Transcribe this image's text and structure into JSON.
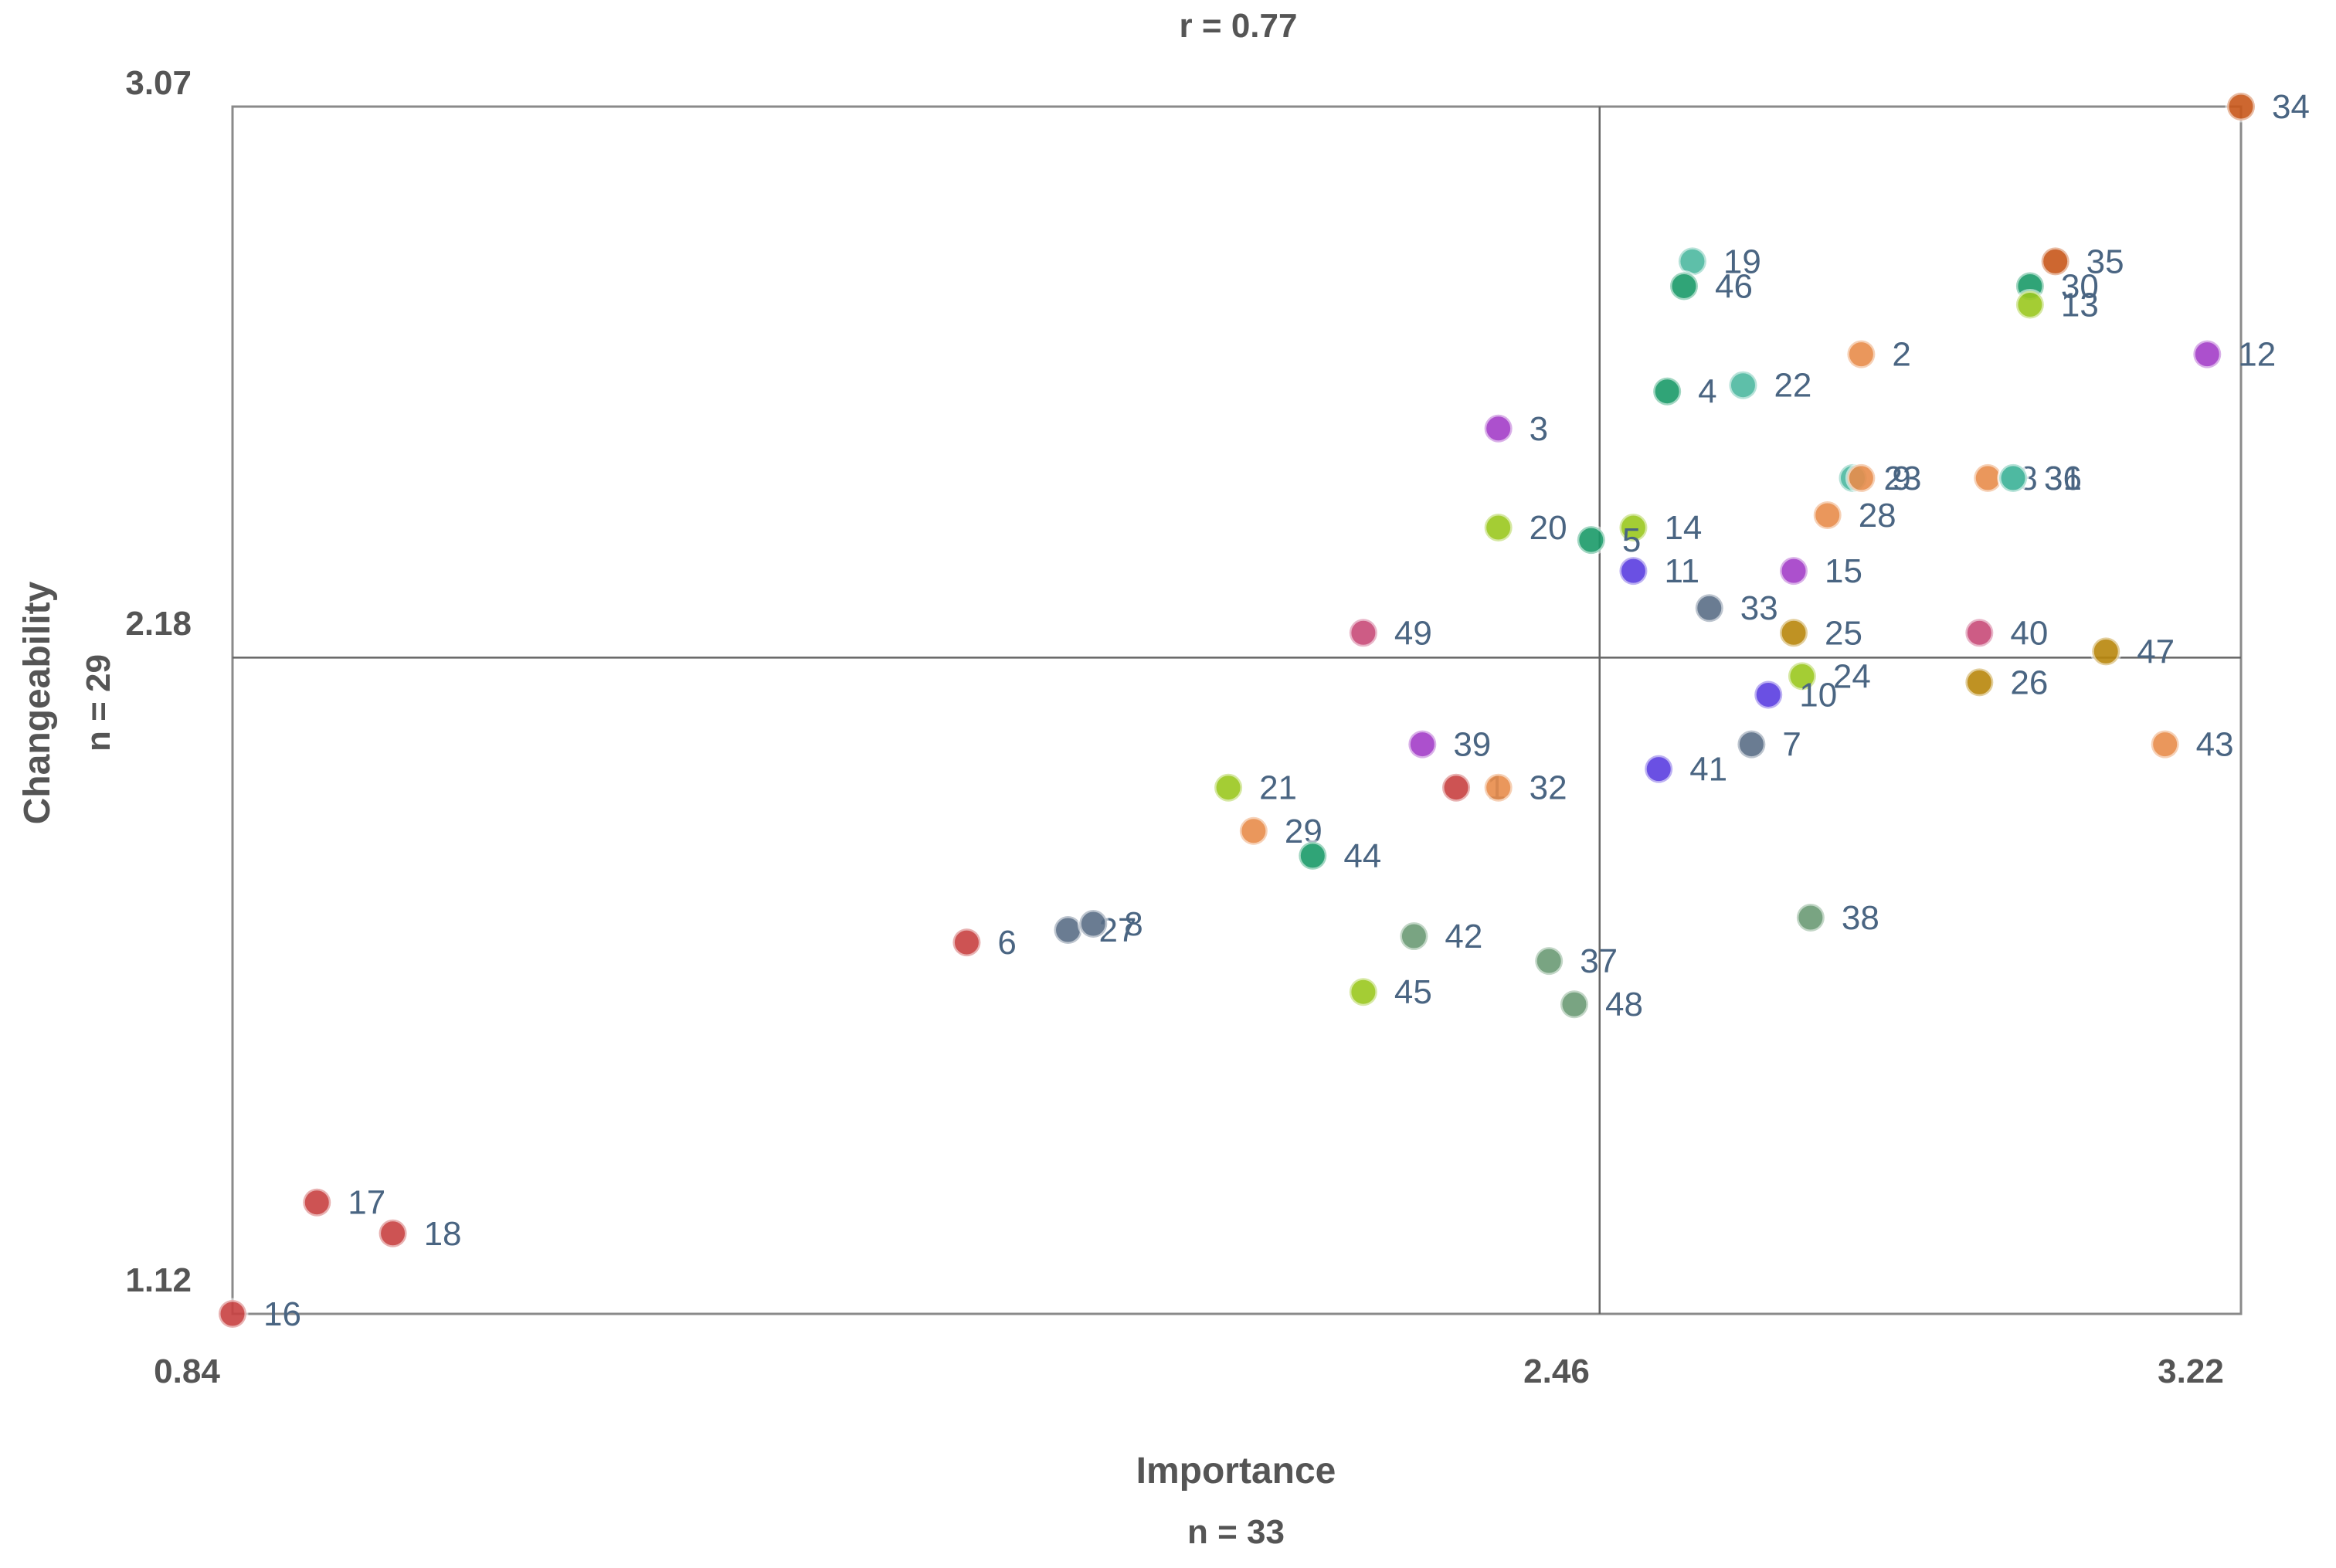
{
  "chart_data": {
    "type": "scatter",
    "title": "r = 0.77",
    "xlabel": "Importance",
    "xlabel_sub": "n = 33",
    "ylabel": "Changeability",
    "ylabel_sub": "n = 29",
    "xlim": [
      0.84,
      3.22
    ],
    "ylim": [
      1.12,
      3.07
    ],
    "xticks": [
      "0.84",
      "2.46",
      "3.22"
    ],
    "yticks": [
      "1.12",
      "2.18",
      "3.07"
    ],
    "x_divider": 2.46,
    "y_divider": 2.18,
    "points": [
      {
        "label": "34",
        "x": 3.22,
        "y": 3.07,
        "color": "#c8571a"
      },
      {
        "label": "19",
        "x": 2.57,
        "y": 2.82,
        "color": "#4db8a0"
      },
      {
        "label": "46",
        "x": 2.56,
        "y": 2.78,
        "color": "#1a9a68"
      },
      {
        "label": "35",
        "x": 3.0,
        "y": 2.82,
        "color": "#c8571a"
      },
      {
        "label": "30",
        "x": 2.97,
        "y": 2.78,
        "color": "#1a9a68"
      },
      {
        "label": "13",
        "x": 2.97,
        "y": 2.75,
        "color": "#9ac81e"
      },
      {
        "label": "2",
        "x": 2.77,
        "y": 2.67,
        "color": "#e88c4a"
      },
      {
        "label": "12",
        "x": 3.18,
        "y": 2.67,
        "color": "#a33dc8"
      },
      {
        "label": "4",
        "x": 2.54,
        "y": 2.61,
        "color": "#1a9a68"
      },
      {
        "label": "22",
        "x": 2.63,
        "y": 2.62,
        "color": "#4db8a0"
      },
      {
        "label": "3",
        "x": 2.34,
        "y": 2.55,
        "color": "#a33dc8"
      },
      {
        "label": "23",
        "x": 2.76,
        "y": 2.47,
        "color": "#4db8a0"
      },
      {
        "label": "9",
        "x": 2.77,
        "y": 2.47,
        "color": "#e88c4a"
      },
      {
        "label": "8",
        "x": 2.92,
        "y": 2.47,
        "color": "#e88c4a"
      },
      {
        "label": "31",
        "x": 2.95,
        "y": 2.47,
        "color": "#4db8a0"
      },
      {
        "label": "36",
        "x": 2.95,
        "y": 2.47,
        "color": "#4db8a0"
      },
      {
        "label": "28",
        "x": 2.73,
        "y": 2.41,
        "color": "#e88c4a"
      },
      {
        "label": "20",
        "x": 2.34,
        "y": 2.39,
        "color": "#9ac81e"
      },
      {
        "label": "14",
        "x": 2.5,
        "y": 2.39,
        "color": "#9ac81e"
      },
      {
        "label": "5",
        "x": 2.45,
        "y": 2.37,
        "color": "#1a9a68"
      },
      {
        "label": "11",
        "x": 2.5,
        "y": 2.32,
        "color": "#5a3de0"
      },
      {
        "label": "15",
        "x": 2.69,
        "y": 2.32,
        "color": "#a33dc8"
      },
      {
        "label": "33",
        "x": 2.59,
        "y": 2.26,
        "color": "#5a6e86"
      },
      {
        "label": "49",
        "x": 2.18,
        "y": 2.22,
        "color": "#c84a78"
      },
      {
        "label": "25",
        "x": 2.69,
        "y": 2.22,
        "color": "#b8860b"
      },
      {
        "label": "40",
        "x": 2.91,
        "y": 2.22,
        "color": "#c84a78"
      },
      {
        "label": "47",
        "x": 3.06,
        "y": 2.19,
        "color": "#b8860b"
      },
      {
        "label": "24",
        "x": 2.7,
        "y": 2.15,
        "color": "#9ac81e"
      },
      {
        "label": "26",
        "x": 2.91,
        "y": 2.14,
        "color": "#b8860b"
      },
      {
        "label": "10",
        "x": 2.66,
        "y": 2.12,
        "color": "#5a3de0"
      },
      {
        "label": "39",
        "x": 2.25,
        "y": 2.04,
        "color": "#a33dc8"
      },
      {
        "label": "7",
        "x": 2.64,
        "y": 2.04,
        "color": "#5a6e86"
      },
      {
        "label": "43",
        "x": 3.13,
        "y": 2.04,
        "color": "#e88c4a"
      },
      {
        "label": "41",
        "x": 2.53,
        "y": 2.0,
        "color": "#5a3de0"
      },
      {
        "label": "21",
        "x": 2.02,
        "y": 1.97,
        "color": "#9ac81e"
      },
      {
        "label": "1",
        "x": 2.29,
        "y": 1.97,
        "color": "#c84040"
      },
      {
        "label": "32",
        "x": 2.34,
        "y": 1.97,
        "color": "#e88c4a"
      },
      {
        "label": "29",
        "x": 2.05,
        "y": 1.9,
        "color": "#e88c4a"
      },
      {
        "label": "44",
        "x": 2.12,
        "y": 1.86,
        "color": "#1a9a68"
      },
      {
        "label": "38",
        "x": 2.71,
        "y": 1.76,
        "color": "#6a9a74"
      },
      {
        "label": "27",
        "x": 1.83,
        "y": 1.74,
        "color": "#5a6e86"
      },
      {
        "label": "8",
        "x": 1.86,
        "y": 1.75,
        "color": "#5a6e86"
      },
      {
        "label": "6",
        "x": 1.71,
        "y": 1.72,
        "color": "#c84040"
      },
      {
        "label": "42",
        "x": 2.24,
        "y": 1.73,
        "color": "#6a9a74"
      },
      {
        "label": "37",
        "x": 2.4,
        "y": 1.69,
        "color": "#6a9a74"
      },
      {
        "label": "45",
        "x": 2.18,
        "y": 1.64,
        "color": "#9ac81e"
      },
      {
        "label": "48",
        "x": 2.43,
        "y": 1.62,
        "color": "#6a9a74"
      },
      {
        "label": "17",
        "x": 0.94,
        "y": 1.3,
        "color": "#c84040"
      },
      {
        "label": "18",
        "x": 1.03,
        "y": 1.25,
        "color": "#c84040"
      },
      {
        "label": "16",
        "x": 0.84,
        "y": 1.12,
        "color": "#c84040"
      }
    ]
  }
}
